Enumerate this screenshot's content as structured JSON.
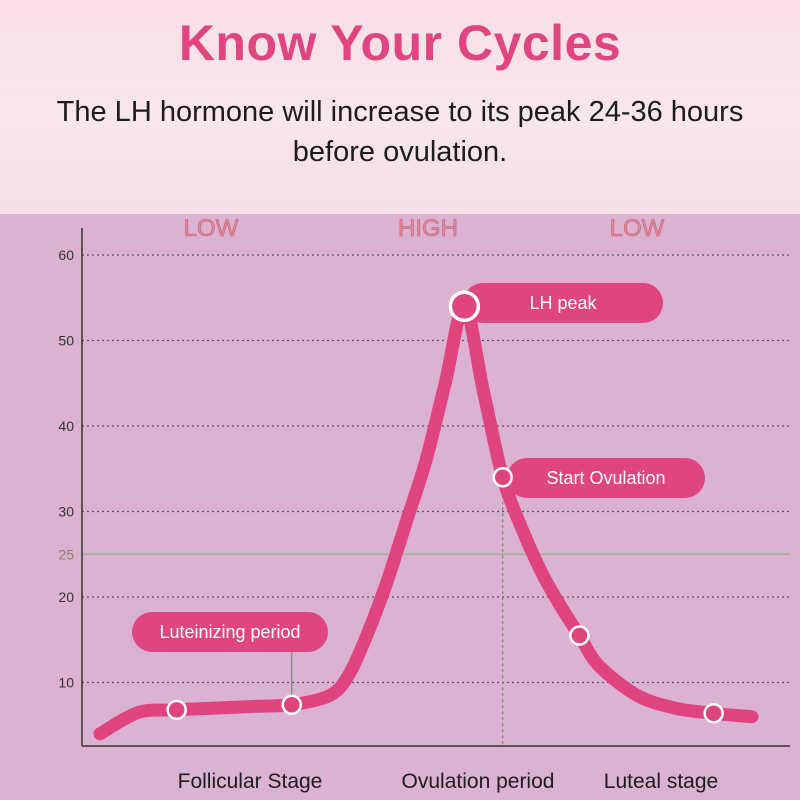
{
  "header": {
    "title": "Know Your Cycles",
    "subtitle": "The LH hormone will increase to its peak 24-36 hours before ovulation."
  },
  "colors": {
    "accent": "#e0457f",
    "curve": "#e0447e",
    "chart_bg": "#dcb2d2",
    "level_text": "#e08a9a",
    "threshold_line": "#a0b58a"
  },
  "chart_data": {
    "type": "line",
    "title": "",
    "xlabel": "",
    "ylabel": "",
    "ylim": [
      0,
      60
    ],
    "yticks": [
      10,
      20,
      25,
      30,
      40,
      50,
      60
    ],
    "grid": true,
    "threshold": 25,
    "levels": [
      "LOW",
      "HIGH",
      "LOW"
    ],
    "stages": [
      "Follicular Stage",
      "Ovulation period",
      "Luteal stage"
    ],
    "series": [
      {
        "values": [
          {
            "x": 0.0,
            "y": 4.0
          },
          {
            "x": 1.0,
            "y": 6.5
          },
          {
            "x": 2.0,
            "y": 6.8
          },
          {
            "x": 3.0,
            "y": 7.0
          },
          {
            "x": 4.0,
            "y": 7.2
          },
          {
            "x": 5.0,
            "y": 7.4
          },
          {
            "x": 6.0,
            "y": 8.5
          },
          {
            "x": 6.5,
            "y": 11.0
          },
          {
            "x": 7.0,
            "y": 16.0
          },
          {
            "x": 7.5,
            "y": 22.0
          },
          {
            "x": 8.0,
            "y": 29.0
          },
          {
            "x": 8.5,
            "y": 36.0
          },
          {
            "x": 9.0,
            "y": 45.0
          },
          {
            "x": 9.5,
            "y": 54.0
          },
          {
            "x": 10.0,
            "y": 44.0
          },
          {
            "x": 10.5,
            "y": 34.0
          },
          {
            "x": 11.0,
            "y": 28.0
          },
          {
            "x": 11.5,
            "y": 23.0
          },
          {
            "x": 12.0,
            "y": 19.0
          },
          {
            "x": 12.5,
            "y": 15.5
          },
          {
            "x": 13.0,
            "y": 12.0
          },
          {
            "x": 14.0,
            "y": 8.5
          },
          {
            "x": 15.0,
            "y": 7.0
          },
          {
            "x": 16.0,
            "y": 6.4
          },
          {
            "x": 17.0,
            "y": 6.0
          }
        ]
      }
    ],
    "markers": [
      {
        "x": 2.0,
        "y": 6.8
      },
      {
        "x": 5.0,
        "y": 7.4
      },
      {
        "x": 9.5,
        "y": 54.0,
        "label": "LH peak",
        "large": true
      },
      {
        "x": 10.5,
        "y": 34.0,
        "label": "Start Ovulation"
      },
      {
        "x": 12.5,
        "y": 15.5
      },
      {
        "x": 16.0,
        "y": 6.4
      }
    ],
    "annotations": [
      "LH peak",
      "Start Ovulation",
      "Luteinizing period"
    ]
  }
}
